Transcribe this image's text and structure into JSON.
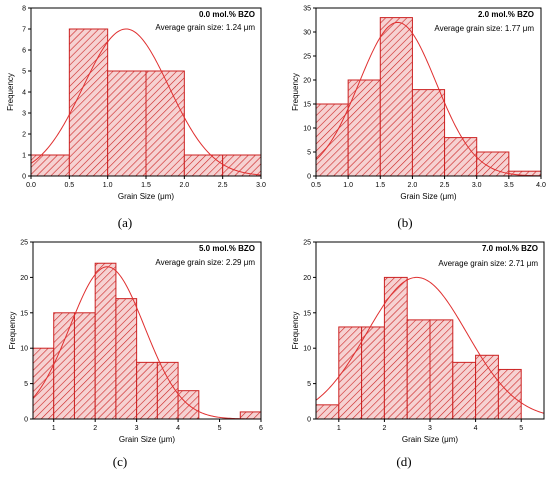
{
  "colors": {
    "bar_fill": "#f4c8c8",
    "bar_stroke": "#cc2222",
    "hatch": "#cc2222",
    "curve": "#e03030",
    "axis": "#000000"
  },
  "chart_data": [
    {
      "type": "bar",
      "panel": "(a)",
      "title": "0.0 mol.% BZO",
      "annotation": "Average grain size: 1.24 μm",
      "xlabel": "Grain Size (μm)",
      "ylabel": "Frequency",
      "xlim": [
        0,
        3
      ],
      "ylim": [
        0,
        8
      ],
      "xticks": [
        "0.0",
        "0.5",
        "1.0",
        "1.5",
        "2.0",
        "2.5",
        "3.0"
      ],
      "yticks": [
        "0",
        "1",
        "2",
        "3",
        "4",
        "5",
        "6",
        "7",
        "8"
      ],
      "bin_width": 0.5,
      "bins": [
        {
          "x0": 0.0,
          "x1": 0.5,
          "count": 1
        },
        {
          "x0": 0.5,
          "x1": 1.0,
          "count": 7
        },
        {
          "x0": 1.0,
          "x1": 1.5,
          "count": 5
        },
        {
          "x0": 1.5,
          "x1": 2.0,
          "count": 5
        },
        {
          "x0": 2.0,
          "x1": 2.5,
          "count": 1
        },
        {
          "x0": 2.5,
          "x1": 3.0,
          "count": 1
        }
      ],
      "fit": {
        "type": "normal",
        "mean": 1.24,
        "sd": 0.56,
        "peak": 7.0
      }
    },
    {
      "type": "bar",
      "panel": "(b)",
      "title": "2.0 mol.% BZO",
      "annotation": "Average grain size: 1.77 μm",
      "xlabel": "Grain Size (μm)",
      "ylabel": "Frequency",
      "xlim": [
        0.5,
        4.0
      ],
      "ylim": [
        0,
        35
      ],
      "xticks": [
        "0.5",
        "1.0",
        "1.5",
        "2.0",
        "2.5",
        "3.0",
        "3.5",
        "4.0"
      ],
      "yticks": [
        "0",
        "5",
        "10",
        "15",
        "20",
        "25",
        "30",
        "35"
      ],
      "bin_width": 0.5,
      "bins": [
        {
          "x0": 0.5,
          "x1": 1.0,
          "count": 15
        },
        {
          "x0": 1.0,
          "x1": 1.5,
          "count": 20
        },
        {
          "x0": 1.5,
          "x1": 2.0,
          "count": 33
        },
        {
          "x0": 2.0,
          "x1": 2.5,
          "count": 18
        },
        {
          "x0": 2.5,
          "x1": 3.0,
          "count": 8
        },
        {
          "x0": 3.0,
          "x1": 3.5,
          "count": 5
        },
        {
          "x0": 3.5,
          "x1": 4.0,
          "count": 1
        }
      ],
      "fit": {
        "type": "normal",
        "mean": 1.77,
        "sd": 0.6,
        "peak": 32
      }
    },
    {
      "type": "bar",
      "panel": "(c)",
      "title": "5.0 mol.% BZO",
      "annotation": "Average grain size: 2.29 μm",
      "xlabel": "Grain Size (μm)",
      "ylabel": "Frequency",
      "xlim": [
        0.5,
        6.0
      ],
      "ylim": [
        0,
        25
      ],
      "xticks": [
        "1",
        "2",
        "3",
        "4",
        "5",
        "6"
      ],
      "yticks": [
        "0",
        "5",
        "10",
        "15",
        "20",
        "25"
      ],
      "bin_width": 0.5,
      "bins": [
        {
          "x0": 0.5,
          "x1": 1.0,
          "count": 10
        },
        {
          "x0": 1.0,
          "x1": 1.5,
          "count": 15
        },
        {
          "x0": 1.5,
          "x1": 2.0,
          "count": 15
        },
        {
          "x0": 2.0,
          "x1": 2.5,
          "count": 22
        },
        {
          "x0": 2.5,
          "x1": 3.0,
          "count": 17
        },
        {
          "x0": 3.0,
          "x1": 3.5,
          "count": 8
        },
        {
          "x0": 3.5,
          "x1": 4.0,
          "count": 8
        },
        {
          "x0": 4.0,
          "x1": 4.5,
          "count": 4
        },
        {
          "x0": 5.5,
          "x1": 6.0,
          "count": 1
        }
      ],
      "fit": {
        "type": "normal",
        "mean": 2.29,
        "sd": 0.9,
        "peak": 21.5
      }
    },
    {
      "type": "bar",
      "panel": "(d)",
      "title": "7.0 mol.% BZO",
      "annotation": "Average grain size: 2.71 μm",
      "xlabel": "Grain Size (μm)",
      "ylabel": "Frequency",
      "xlim": [
        0.5,
        5.5
      ],
      "ylim": [
        0,
        25
      ],
      "xticks": [
        "1",
        "2",
        "3",
        "4",
        "5"
      ],
      "yticks": [
        "0",
        "5",
        "10",
        "15",
        "20",
        "25"
      ],
      "bin_width": 0.5,
      "bins": [
        {
          "x0": 0.5,
          "x1": 1.0,
          "count": 2
        },
        {
          "x0": 1.0,
          "x1": 1.5,
          "count": 13
        },
        {
          "x0": 1.5,
          "x1": 2.0,
          "count": 13
        },
        {
          "x0": 2.0,
          "x1": 2.5,
          "count": 20
        },
        {
          "x0": 2.5,
          "x1": 3.0,
          "count": 14
        },
        {
          "x0": 3.0,
          "x1": 3.5,
          "count": 14
        },
        {
          "x0": 3.5,
          "x1": 4.0,
          "count": 8
        },
        {
          "x0": 4.0,
          "x1": 4.5,
          "count": 9
        },
        {
          "x0": 4.5,
          "x1": 5.0,
          "count": 7
        }
      ],
      "fit": {
        "type": "normal",
        "mean": 2.71,
        "sd": 1.1,
        "peak": 20
      }
    }
  ]
}
